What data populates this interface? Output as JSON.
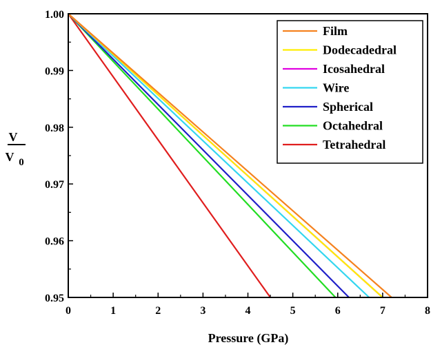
{
  "chart_data": {
    "type": "line",
    "xlabel": "Pressure (GPa)",
    "ylabel_numerator": "V",
    "ylabel_denominator": "V",
    "ylabel_subscript": "0",
    "xlim": [
      0,
      8
    ],
    "ylim": [
      0.95,
      1.0
    ],
    "x_ticks": [
      0,
      1,
      2,
      3,
      4,
      5,
      6,
      7,
      8
    ],
    "x_tick_labels": [
      "0",
      "1",
      "2",
      "3",
      "4",
      "5",
      "6",
      "7",
      "8"
    ],
    "y_ticks": [
      0.95,
      0.96,
      0.97,
      0.98,
      0.99,
      1.0
    ],
    "y_tick_labels": [
      "0.95",
      "0.96",
      "0.97",
      "0.98",
      "0.99",
      "1.00"
    ],
    "grid": false,
    "legend_position": "top-right",
    "series": [
      {
        "name": "Film",
        "color": "#f5821f",
        "x": [
          0,
          7.2
        ],
        "y": [
          1.0,
          0.95
        ]
      },
      {
        "name": "Dodecadedral",
        "color": "#ffee00",
        "x": [
          0,
          7.0
        ],
        "y": [
          1.0,
          0.95
        ]
      },
      {
        "name": "Icosahedral",
        "color": "#e000e0",
        "x": [
          0,
          7.0
        ],
        "y": [
          1.0,
          0.95
        ]
      },
      {
        "name": "Wire",
        "color": "#33d6f0",
        "x": [
          0,
          6.7
        ],
        "y": [
          1.0,
          0.95
        ]
      },
      {
        "name": "Spherical",
        "color": "#1f1fc8",
        "x": [
          0,
          6.25
        ],
        "y": [
          1.0,
          0.95
        ]
      },
      {
        "name": "Octahedral",
        "color": "#22dd22",
        "x": [
          0,
          5.95
        ],
        "y": [
          1.0,
          0.95
        ]
      },
      {
        "name": "Tetrahedral",
        "color": "#e01e1e",
        "x": [
          0,
          4.5
        ],
        "y": [
          1.0,
          0.95
        ]
      }
    ]
  }
}
